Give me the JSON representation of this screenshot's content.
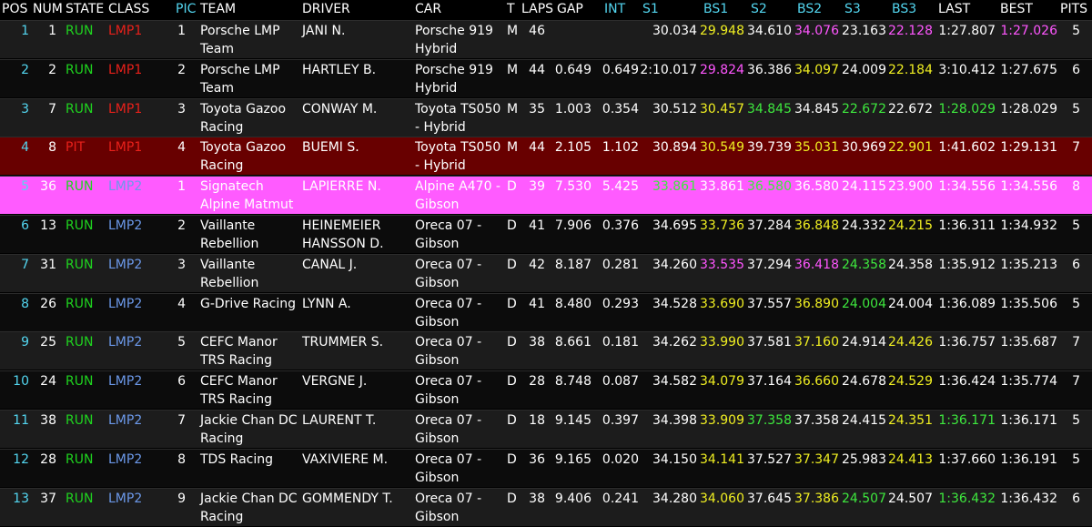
{
  "headers": {
    "pos": "POS",
    "num": "NUM",
    "state": "STATE",
    "class": "CLASS",
    "pic": "PIC",
    "team": "TEAM",
    "driver": "DRIVER",
    "car": "CAR",
    "t": "T",
    "laps": "LAPS",
    "gap": "GAP",
    "int": "INT",
    "s1": "S1",
    "bs1": "BS1",
    "s2": "S2",
    "bs2": "BS2",
    "s3": "S3",
    "bs3": "BS3",
    "last": "LAST",
    "best": "BEST",
    "pits": "PITS"
  },
  "colors": {
    "background": "#000000",
    "row_alt": "#1c1c1c",
    "row_dark": "#0c0c0c",
    "pit_row": "#680000",
    "highlight_row": "#ff5bff",
    "cyan": "#53d6f0",
    "green": "#1fd41f",
    "red": "#e8201a",
    "blue": "#6c99ea",
    "yellow": "#f0ef22",
    "magenta": "#ff56ff",
    "light_green": "#3ee83e"
  },
  "rows": [
    {
      "pos": "1",
      "num": "1",
      "state": "RUN",
      "class": "LMP1",
      "pic": "1",
      "team1": "Porsche LMP",
      "team2": "Team",
      "driver": "JANI N.",
      "car1": "Porsche 919",
      "car2": "Hybrid",
      "t": "M",
      "laps": "46",
      "gap": "",
      "int": "",
      "s1": "30.034",
      "bs1": "29.948",
      "s2": "34.610",
      "bs2": "34.076",
      "s3": "23.163",
      "bs3": "22.128",
      "last": "1:27.807",
      "best": "1:27.026",
      "pits": "5"
    },
    {
      "pos": "2",
      "num": "2",
      "state": "RUN",
      "class": "LMP1",
      "pic": "2",
      "team1": "Porsche LMP",
      "team2": "Team",
      "driver": "HARTLEY B.",
      "car1": "Porsche 919",
      "car2": "Hybrid",
      "t": "M",
      "laps": "44",
      "gap": "0.649",
      "int": "0.649",
      "s1": "2:10.017",
      "bs1": "29.824",
      "s2": "36.386",
      "bs2": "34.097",
      "s3": "24.009",
      "bs3": "22.184",
      "last": "3:10.412",
      "best": "1:27.675",
      "pits": "6"
    },
    {
      "pos": "3",
      "num": "7",
      "state": "RUN",
      "class": "LMP1",
      "pic": "3",
      "team1": "Toyota Gazoo",
      "team2": "Racing",
      "driver": "CONWAY M.",
      "car1": "Toyota TS050",
      "car2": "- Hybrid",
      "t": "M",
      "laps": "35",
      "gap": "1.003",
      "int": "0.354",
      "s1": "30.512",
      "bs1": "30.457",
      "s2": "34.845",
      "bs2": "34.845",
      "s3": "22.672",
      "bs3": "22.672",
      "last": "1:28.029",
      "best": "1:28.029",
      "pits": "5"
    },
    {
      "pos": "4",
      "num": "8",
      "state": "PIT",
      "class": "LMP1",
      "pic": "4",
      "team1": "Toyota Gazoo",
      "team2": "Racing",
      "driver": "BUEMI S.",
      "car1": "Toyota TS050",
      "car2": "- Hybrid",
      "t": "M",
      "laps": "44",
      "gap": "2.105",
      "int": "1.102",
      "s1": "30.894",
      "bs1": "30.549",
      "s2": "39.739",
      "bs2": "35.031",
      "s3": "30.969",
      "bs3": "22.901",
      "last": "1:41.602",
      "best": "1:29.131",
      "pits": "7"
    },
    {
      "pos": "5",
      "num": "36",
      "state": "RUN",
      "class": "LMP2",
      "pic": "1",
      "team1": "Signatech",
      "team2": "Alpine Matmut",
      "driver": "LAPIERRE N.",
      "car1": "Alpine A470 -",
      "car2": "Gibson",
      "t": "D",
      "laps": "39",
      "gap": "7.530",
      "int": "5.425",
      "s1": "33.861",
      "bs1": "33.861",
      "s2": "36.580",
      "bs2": "36.580",
      "s3": "24.115",
      "bs3": "23.900",
      "last": "1:34.556",
      "best": "1:34.556",
      "pits": "8"
    },
    {
      "pos": "6",
      "num": "13",
      "state": "RUN",
      "class": "LMP2",
      "pic": "2",
      "team1": "Vaillante",
      "team2": "Rebellion",
      "driver": "HEINEMEIER",
      "driver2": "HANSSON D.",
      "car1": "Oreca 07 -",
      "car2": "Gibson",
      "t": "D",
      "laps": "41",
      "gap": "7.906",
      "int": "0.376",
      "s1": "34.695",
      "bs1": "33.736",
      "s2": "37.284",
      "bs2": "36.848",
      "s3": "24.332",
      "bs3": "24.215",
      "last": "1:36.311",
      "best": "1:34.932",
      "pits": "5"
    },
    {
      "pos": "7",
      "num": "31",
      "state": "RUN",
      "class": "LMP2",
      "pic": "3",
      "team1": "Vaillante",
      "team2": "Rebellion",
      "driver": "CANAL J.",
      "car1": "Oreca 07 -",
      "car2": "Gibson",
      "t": "D",
      "laps": "42",
      "gap": "8.187",
      "int": "0.281",
      "s1": "34.260",
      "bs1": "33.535",
      "s2": "37.294",
      "bs2": "36.418",
      "s3": "24.358",
      "bs3": "24.358",
      "last": "1:35.912",
      "best": "1:35.213",
      "pits": "6"
    },
    {
      "pos": "8",
      "num": "26",
      "state": "RUN",
      "class": "LMP2",
      "pic": "4",
      "team1": "G-Drive Racing",
      "team2": "",
      "driver": "LYNN A.",
      "car1": "Oreca 07 -",
      "car2": "Gibson",
      "t": "D",
      "laps": "41",
      "gap": "8.480",
      "int": "0.293",
      "s1": "34.528",
      "bs1": "33.690",
      "s2": "37.557",
      "bs2": "36.890",
      "s3": "24.004",
      "bs3": "24.004",
      "last": "1:36.089",
      "best": "1:35.506",
      "pits": "5"
    },
    {
      "pos": "9",
      "num": "25",
      "state": "RUN",
      "class": "LMP2",
      "pic": "5",
      "team1": "CEFC Manor",
      "team2": "TRS Racing",
      "driver": "TRUMMER S.",
      "car1": "Oreca 07 -",
      "car2": "Gibson",
      "t": "D",
      "laps": "38",
      "gap": "8.661",
      "int": "0.181",
      "s1": "34.262",
      "bs1": "33.990",
      "s2": "37.581",
      "bs2": "37.160",
      "s3": "24.914",
      "bs3": "24.426",
      "last": "1:36.757",
      "best": "1:35.687",
      "pits": "7"
    },
    {
      "pos": "10",
      "num": "24",
      "state": "RUN",
      "class": "LMP2",
      "pic": "6",
      "team1": "CEFC Manor",
      "team2": "TRS Racing",
      "driver": "VERGNE J.",
      "car1": "Oreca 07 -",
      "car2": "Gibson",
      "t": "D",
      "laps": "28",
      "gap": "8.748",
      "int": "0.087",
      "s1": "34.582",
      "bs1": "34.079",
      "s2": "37.164",
      "bs2": "36.660",
      "s3": "24.678",
      "bs3": "24.529",
      "last": "1:36.424",
      "best": "1:35.774",
      "pits": "7"
    },
    {
      "pos": "11",
      "num": "38",
      "state": "RUN",
      "class": "LMP2",
      "pic": "7",
      "team1": "Jackie Chan DC",
      "team2": "Racing",
      "driver": "LAURENT T.",
      "car1": "Oreca 07 -",
      "car2": "Gibson",
      "t": "D",
      "laps": "18",
      "gap": "9.145",
      "int": "0.397",
      "s1": "34.398",
      "bs1": "33.909",
      "s2": "37.358",
      "bs2": "37.358",
      "s3": "24.415",
      "bs3": "24.351",
      "last": "1:36.171",
      "best": "1:36.171",
      "pits": "5"
    },
    {
      "pos": "12",
      "num": "28",
      "state": "RUN",
      "class": "LMP2",
      "pic": "8",
      "team1": "TDS Racing",
      "team2": "",
      "driver": "VAXIVIERE M.",
      "car1": "Oreca 07 -",
      "car2": "Gibson",
      "t": "D",
      "laps": "36",
      "gap": "9.165",
      "int": "0.020",
      "s1": "34.150",
      "bs1": "34.141",
      "s2": "37.527",
      "bs2": "37.347",
      "s3": "25.983",
      "bs3": "24.413",
      "last": "1:37.660",
      "best": "1:36.191",
      "pits": "5"
    },
    {
      "pos": "13",
      "num": "37",
      "state": "RUN",
      "class": "LMP2",
      "pic": "9",
      "team1": "Jackie Chan DC",
      "team2": "Racing",
      "driver": "GOMMENDY T.",
      "car1": "Oreca 07 -",
      "car2": "Gibson",
      "t": "D",
      "laps": "38",
      "gap": "9.406",
      "int": "0.241",
      "s1": "34.280",
      "bs1": "34.060",
      "s2": "37.645",
      "bs2": "37.386",
      "s3": "24.507",
      "bs3": "24.507",
      "last": "1:36.432",
      "best": "1:36.432",
      "pits": "6"
    }
  ],
  "row_styles": [
    "alt",
    "dark",
    "alt",
    "pit",
    "highlight",
    "dark",
    "alt",
    "dark",
    "alt",
    "dark",
    "alt",
    "dark",
    "alt"
  ],
  "cell_colors": [
    {
      "bs1": "yl",
      "bs2": "mg",
      "bs3": "mg",
      "best": "mg"
    },
    {
      "bs1": "mg",
      "bs2": "yl",
      "bs3": "yl"
    },
    {
      "bs1": "yl",
      "s2": "lg",
      "s3": "lg",
      "last": "lg"
    },
    {
      "bs1": "yl",
      "bs2": "yl",
      "bs3": "yl"
    },
    {
      "s1": "lg",
      "s2": "lg"
    },
    {
      "bs1": "yl",
      "bs2": "yl",
      "bs3": "yl"
    },
    {
      "bs1": "mg",
      "bs2": "mg",
      "s3": "lg"
    },
    {
      "bs1": "yl",
      "bs2": "yl",
      "s3": "lg"
    },
    {
      "bs1": "yl",
      "bs2": "yl",
      "bs3": "yl"
    },
    {
      "bs1": "yl",
      "bs2": "yl",
      "bs3": "yl"
    },
    {
      "bs1": "yl",
      "s2": "lg",
      "bs3": "yl",
      "last": "lg"
    },
    {
      "bs1": "yl",
      "bs2": "yl",
      "bs3": "yl"
    },
    {
      "bs1": "yl",
      "bs2": "yl",
      "s3": "lg",
      "last": "lg"
    }
  ]
}
